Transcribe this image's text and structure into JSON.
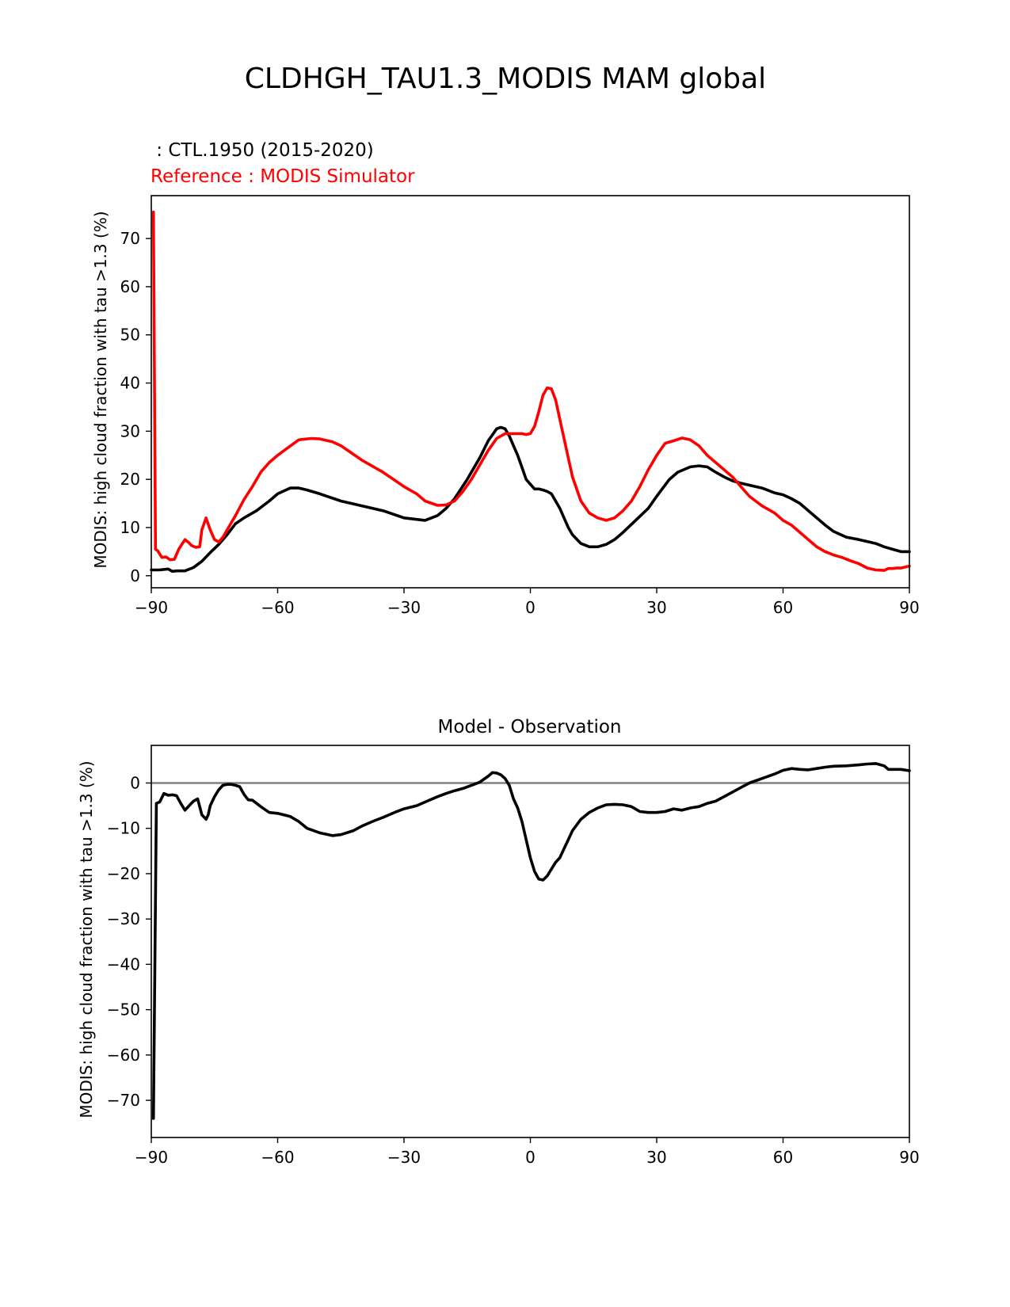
{
  "figure_title": "CLDHGH_TAU1.3_MODIS MAM global",
  "chart_data": [
    {
      "type": "line",
      "title_test": " : CTL.1950 (2015-2020)",
      "title_ref": "Reference : MODIS Simulator",
      "xlabel": "",
      "ylabel": "MODIS: high cloud fraction with tau >1.3 (%)",
      "xlim": [
        -90,
        90
      ],
      "ylim": [
        -2.5,
        78.9
      ],
      "xticks": [
        -90,
        -60,
        -30,
        0,
        30,
        60,
        90
      ],
      "xtick_labels": [
        "−90",
        "−60",
        "−30",
        "0",
        "30",
        "60",
        "90"
      ],
      "yticks": [
        0,
        10,
        20,
        30,
        40,
        50,
        60,
        70
      ],
      "ytick_labels": [
        "0",
        "10",
        "20",
        "30",
        "40",
        "50",
        "60",
        "70"
      ],
      "series": [
        {
          "name": "Test (CTL.1950)",
          "color": "#000000",
          "x": [
            -90,
            -88,
            -86,
            -85,
            -84,
            -82,
            -80,
            -78,
            -76,
            -74,
            -72,
            -70,
            -68,
            -65,
            -62,
            -60,
            -57,
            -55,
            -53,
            -50,
            -45,
            -40,
            -35,
            -30,
            -25,
            -22,
            -20,
            -18,
            -15,
            -12,
            -10,
            -8,
            -7,
            -6,
            -5,
            -4,
            -3,
            -2,
            -1,
            0,
            1,
            2,
            3,
            4,
            5,
            6,
            7,
            8,
            9,
            10,
            12,
            14,
            16,
            18,
            20,
            22,
            25,
            28,
            30,
            33,
            35,
            38,
            40,
            42,
            44,
            46,
            48,
            50,
            52,
            55,
            58,
            60,
            62,
            64,
            66,
            68,
            70,
            72,
            75,
            78,
            80,
            82,
            84,
            86,
            88,
            90
          ],
          "y": [
            1.2,
            1.2,
            1.4,
            0.9,
            1.0,
            1.0,
            1.7,
            3.0,
            4.8,
            6.5,
            8.5,
            10.8,
            12.0,
            13.5,
            15.5,
            17.0,
            18.2,
            18.2,
            17.8,
            17.0,
            15.5,
            14.5,
            13.5,
            12.0,
            11.5,
            12.5,
            14.0,
            16.0,
            20.0,
            24.5,
            28.0,
            30.5,
            30.8,
            30.5,
            29.0,
            27.0,
            25.0,
            22.5,
            20.0,
            19.0,
            18.0,
            18.0,
            17.8,
            17.5,
            17.0,
            15.5,
            14.0,
            12.0,
            10.0,
            8.5,
            6.7,
            6.0,
            6.0,
            6.5,
            7.5,
            9.0,
            11.5,
            14.0,
            16.5,
            20.0,
            21.5,
            22.6,
            22.8,
            22.6,
            21.5,
            20.5,
            19.7,
            19.2,
            18.8,
            18.2,
            17.2,
            16.8,
            16.0,
            15.0,
            13.5,
            12.0,
            10.5,
            9.2,
            8.0,
            7.5,
            7.1,
            6.7,
            6.0,
            5.5,
            5.0,
            5.0
          ]
        },
        {
          "name": "Reference (MODIS Simulator)",
          "color": "#ff0000",
          "x": [
            -89.5,
            -89,
            -88.5,
            -87.5,
            -86.5,
            -85.5,
            -84.5,
            -83.5,
            -82,
            -81,
            -80.5,
            -79.5,
            -78.5,
            -78,
            -77,
            -76,
            -75,
            -74,
            -73,
            -72,
            -71,
            -70,
            -68,
            -66,
            -64,
            -62,
            -60,
            -58,
            -55,
            -52,
            -50,
            -47,
            -45,
            -40,
            -35,
            -30,
            -27,
            -25,
            -22,
            -20,
            -18,
            -16,
            -14,
            -12,
            -10,
            -8,
            -6,
            -4,
            -2,
            -1,
            0,
            1,
            2,
            3,
            4,
            5,
            6,
            7,
            8,
            10,
            12,
            14,
            16,
            18,
            20,
            22,
            24,
            26,
            28,
            30,
            32,
            34,
            36,
            38,
            40,
            42,
            44,
            46,
            48,
            50,
            52,
            55,
            58,
            60,
            62,
            64,
            66,
            68,
            70,
            72,
            74,
            76,
            78,
            80,
            82,
            84,
            85,
            86,
            87,
            88,
            90
          ],
          "y": [
            75.5,
            5.5,
            5.2,
            3.8,
            3.9,
            3.3,
            3.4,
            5.5,
            7.5,
            6.8,
            6.3,
            5.9,
            6.0,
            9.5,
            12.0,
            9.5,
            7.5,
            7.0,
            8.0,
            9.5,
            11.0,
            12.5,
            15.8,
            18.5,
            21.5,
            23.5,
            25.0,
            26.3,
            28.2,
            28.5,
            28.4,
            27.8,
            27.0,
            24.0,
            21.5,
            18.5,
            17.0,
            15.5,
            14.6,
            14.7,
            15.5,
            17.5,
            20.0,
            23.0,
            26.0,
            28.5,
            29.5,
            29.5,
            29.5,
            29.3,
            29.5,
            31.0,
            34.0,
            37.5,
            39.0,
            38.8,
            36.5,
            32.5,
            28.5,
            20.5,
            15.5,
            13.0,
            12.0,
            11.5,
            12.0,
            13.5,
            15.5,
            18.5,
            22.0,
            25.0,
            27.5,
            28.0,
            28.6,
            28.2,
            27.0,
            25.0,
            23.5,
            22.0,
            20.5,
            18.5,
            16.5,
            14.5,
            13.0,
            11.5,
            10.5,
            9.0,
            7.5,
            6.0,
            5.0,
            4.3,
            3.8,
            3.1,
            2.5,
            1.6,
            1.2,
            1.1,
            1.5,
            1.5,
            1.6,
            1.6,
            2.0
          ]
        }
      ]
    },
    {
      "type": "line",
      "title": "Model - Observation",
      "xlabel": "",
      "ylabel": "MODIS: high cloud fraction with tau >1.3 (%)",
      "xlim": [
        -90,
        90
      ],
      "ylim": [
        -78.2,
        8.3
      ],
      "xticks": [
        -90,
        -60,
        -30,
        0,
        30,
        60,
        90
      ],
      "xtick_labels": [
        "−90",
        "−60",
        "−30",
        "0",
        "30",
        "60",
        "90"
      ],
      "yticks": [
        0,
        -10,
        -20,
        -30,
        -40,
        -50,
        -60,
        -70
      ],
      "ytick_labels": [
        "0",
        "−10",
        "−20",
        "−30",
        "−40",
        "−50",
        "−60",
        "−70"
      ],
      "zero_line": true,
      "series": [
        {
          "name": "Model - Observation",
          "color": "#000000",
          "x": [
            -89.5,
            -88.8,
            -88,
            -87,
            -86,
            -85,
            -84,
            -83,
            -82,
            -81,
            -80,
            -79,
            -78,
            -77,
            -76.5,
            -76,
            -75,
            -74,
            -73,
            -72,
            -71,
            -70,
            -69,
            -68,
            -67,
            -66,
            -65,
            -64,
            -62,
            -60,
            -57,
            -55,
            -53,
            -50,
            -47,
            -45,
            -42,
            -40,
            -37,
            -35,
            -32,
            -30,
            -27,
            -25,
            -22,
            -20,
            -18,
            -16,
            -14,
            -12,
            -10,
            -9,
            -8,
            -7,
            -6,
            -5,
            -4,
            -3,
            -2,
            -1,
            0,
            1,
            2,
            3,
            4,
            5,
            6,
            7,
            8,
            9,
            10,
            12,
            14,
            16,
            18,
            20,
            22,
            24,
            26,
            28,
            30,
            32,
            34,
            36,
            38,
            40,
            42,
            44,
            46,
            48,
            50,
            52,
            55,
            58,
            60,
            62,
            64,
            66,
            68,
            70,
            72,
            75,
            78,
            80,
            82,
            84,
            85,
            86,
            88,
            90
          ],
          "y": [
            -74.0,
            -4.5,
            -4.2,
            -2.3,
            -2.7,
            -2.6,
            -2.8,
            -4.5,
            -6.0,
            -5.0,
            -4.0,
            -3.5,
            -7.0,
            -8.0,
            -7.0,
            -5.0,
            -3.0,
            -1.5,
            -0.5,
            -0.3,
            -0.3,
            -0.5,
            -0.8,
            -2.5,
            -3.7,
            -3.8,
            -4.5,
            -5.2,
            -6.5,
            -6.7,
            -7.4,
            -8.5,
            -10.0,
            -11.0,
            -11.6,
            -11.4,
            -10.5,
            -9.5,
            -8.3,
            -7.6,
            -6.4,
            -5.7,
            -5.0,
            -4.2,
            -3.0,
            -2.3,
            -1.7,
            -1.2,
            -0.5,
            0.2,
            1.5,
            2.3,
            2.2,
            1.8,
            1.0,
            -0.5,
            -3.5,
            -5.5,
            -8.5,
            -12.5,
            -16.5,
            -19.5,
            -21.2,
            -21.4,
            -20.5,
            -19.0,
            -17.5,
            -16.5,
            -14.5,
            -12.5,
            -10.5,
            -8.0,
            -6.5,
            -5.5,
            -4.8,
            -4.7,
            -4.8,
            -5.2,
            -6.3,
            -6.5,
            -6.5,
            -6.3,
            -5.7,
            -6.0,
            -5.5,
            -5.2,
            -4.5,
            -4.0,
            -3.0,
            -2.0,
            -1.0,
            0.0,
            1.0,
            2.0,
            2.8,
            3.2,
            3.0,
            2.9,
            3.2,
            3.5,
            3.7,
            3.8,
            4.0,
            4.2,
            4.3,
            3.8,
            3.0,
            3.0,
            3.0,
            2.7
          ]
        }
      ]
    }
  ]
}
